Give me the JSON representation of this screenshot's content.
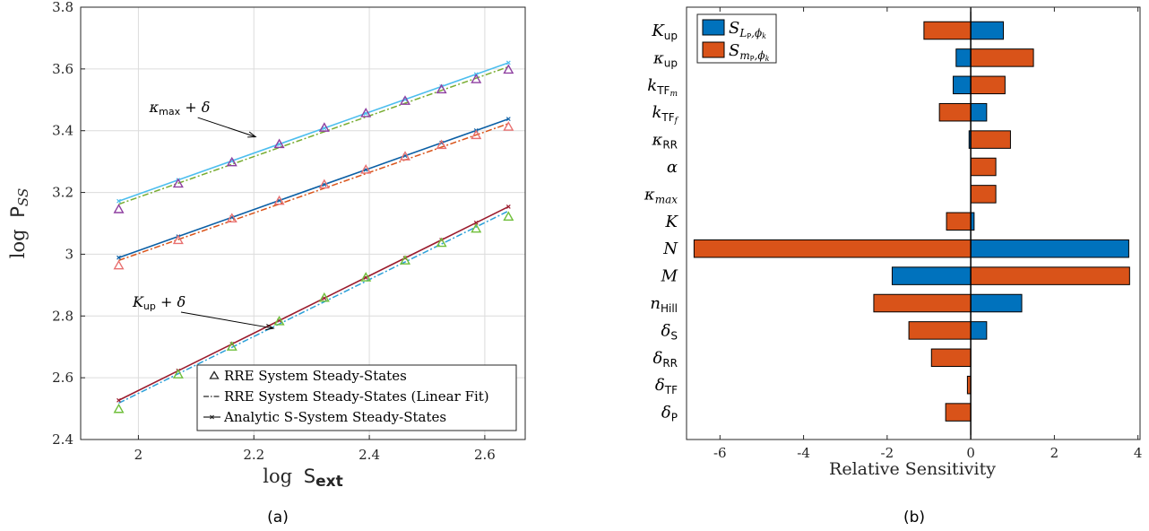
{
  "chart_data": [
    {
      "type": "line",
      "panel_label": "(a)",
      "xlabel_main": "log",
      "xlabel_var": "S",
      "xlabel_sub": "ext",
      "ylabel_main": "log",
      "ylabel_var": "P",
      "ylabel_sub": "SS",
      "xlim": [
        1.9,
        2.67
      ],
      "ylim": [
        2.4,
        3.8
      ],
      "xticks": [
        "2",
        "2.2",
        "2.4",
        "2.6"
      ],
      "xtick_values": [
        2.0,
        2.2,
        2.4,
        2.6
      ],
      "yticks": [
        "2.4",
        "2.6",
        "2.8",
        "3",
        "3.2",
        "3.4",
        "3.6",
        "3.8"
      ],
      "ytick_values": [
        2.4,
        2.6,
        2.8,
        3.0,
        3.2,
        3.4,
        3.6,
        3.8
      ],
      "grid": true,
      "legend_position": "bottom-right",
      "legend": [
        "RRE System Steady-States",
        "RRE System Steady-States (Linear Fit)",
        "Analytic S-System Steady-States"
      ],
      "x": [
        1.966,
        2.069,
        2.162,
        2.244,
        2.322,
        2.394,
        2.462,
        2.525,
        2.585,
        2.641
      ],
      "groups": [
        {
          "marker_color": "#8e3fa0",
          "fit_color": "#77ac30",
          "analytic_color": "#4dbeee",
          "triangles": [
            3.145,
            3.228,
            3.297,
            3.356,
            3.409,
            3.456,
            3.496,
            3.533,
            3.566,
            3.597
          ],
          "fit": [
            3.162,
            3.607
          ],
          "analytic": [
            3.172,
            3.62
          ]
        },
        {
          "marker_color": "#e87070",
          "fit_color": "#d95319",
          "analytic_color": "#0b5fa5",
          "triangles": [
            2.963,
            3.045,
            3.115,
            3.172,
            3.225,
            3.273,
            3.316,
            3.353,
            3.385,
            3.412
          ],
          "fit": [
            2.98,
            3.423
          ],
          "analytic": [
            2.989,
            3.438
          ]
        },
        {
          "marker_color": "#6fbf3a",
          "fit_color": "#2a9fd8",
          "analytic_color": "#9b1c2e",
          "triangles": [
            2.498,
            2.61,
            2.7,
            2.782,
            2.858,
            2.924,
            2.979,
            3.036,
            3.082,
            3.121
          ],
          "fit": [
            2.518,
            3.14
          ],
          "analytic": [
            2.527,
            3.154
          ]
        }
      ],
      "annotations": [
        {
          "math": "κ",
          "sub": "max",
          "suffix": " + δ",
          "x": 2.019,
          "y": 3.46,
          "target_x": 2.203,
          "target_y": 3.38
        },
        {
          "math": "K",
          "sub": "up",
          "suffix": " + δ",
          "x": 1.99,
          "y": 2.83,
          "target_x": 2.234,
          "target_y": 2.76
        }
      ]
    },
    {
      "type": "bar",
      "orientation": "horizontal",
      "panel_label": "(b)",
      "xlabel": "Relative Sensitivity",
      "xlim": [
        -6.8,
        4.05
      ],
      "xticks": [
        "-6",
        "-4",
        "-2",
        "0",
        "2",
        "4"
      ],
      "xtick_values": [
        -6,
        -4,
        -2,
        0,
        2,
        4
      ],
      "grid": false,
      "legend_position": "top-left",
      "categories": [
        {
          "base": "K",
          "sub": "up",
          "sub_style": "sans"
        },
        {
          "base": "κ",
          "sub": "up",
          "sub_style": "sans"
        },
        {
          "base": "k",
          "sub": "TF",
          "sub_style": "sans",
          "sub2": "m"
        },
        {
          "base": "k",
          "sub": "TF",
          "sub_style": "sans",
          "sub2": "f"
        },
        {
          "base": "κ",
          "sub": "RR",
          "sub_style": "sans"
        },
        {
          "base": "α",
          "sub": "",
          "sub_style": "sans"
        },
        {
          "base": "κ",
          "sub": "max",
          "sub_style": "italic"
        },
        {
          "base": "K",
          "sub": "",
          "sub_style": "sans"
        },
        {
          "base": "N",
          "sub": "",
          "sub_style": "sans"
        },
        {
          "base": "M",
          "sub": "",
          "sub_style": "sans"
        },
        {
          "base": "n",
          "sub": "Hill",
          "sub_style": "sans"
        },
        {
          "base": "δ",
          "sub": "S",
          "sub_style": "sans"
        },
        {
          "base": "δ",
          "sub": "RR",
          "sub_style": "sans"
        },
        {
          "base": "δ",
          "sub": "TF",
          "sub_style": "sans"
        },
        {
          "base": "δ",
          "sub": "P",
          "sub_style": "sans"
        }
      ],
      "series": [
        {
          "legend_base": "S",
          "legend_sub": "L",
          "legend_sub_p": "P",
          "legend_sub_rest": ",ϕ",
          "legend_sub_k": "k",
          "color": "#0072bd",
          "values": [
            0.78,
            -0.35,
            -0.42,
            0.38,
            -0.04,
            0.0,
            0.0,
            0.08,
            3.78,
            -1.88,
            1.22,
            0.38,
            0.0,
            0.0,
            0.0
          ]
        },
        {
          "legend_base": "S",
          "legend_sub": "m",
          "legend_sub_p": "P",
          "legend_sub_rest": ",ϕ",
          "legend_sub_k": "k",
          "color": "#d95319",
          "values": [
            -1.12,
            1.5,
            0.82,
            -0.75,
            0.95,
            0.6,
            0.6,
            -0.58,
            -6.62,
            3.8,
            -2.32,
            -1.48,
            -0.94,
            -0.08,
            -0.6
          ]
        }
      ]
    }
  ]
}
